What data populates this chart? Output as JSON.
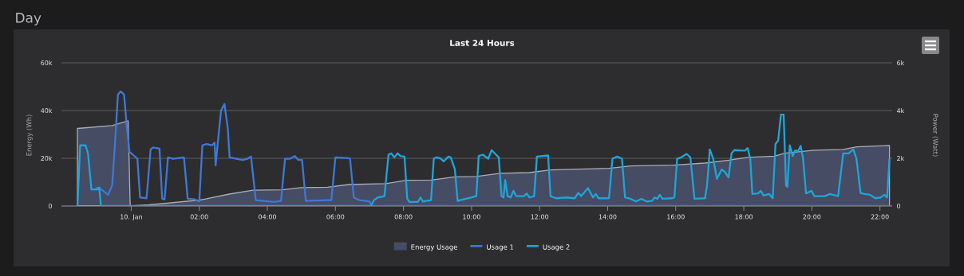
{
  "chart_data": {
    "type": "line",
    "title": "Day",
    "subtitle": "Last 24 Hours",
    "ylabel": "Energy (Wh)",
    "y2label": "Power (Watt)",
    "xlim": [
      -2.05,
      22.36
    ],
    "xticks": [
      {
        "value": 0,
        "label": "10. Jan"
      },
      {
        "value": 2,
        "label": "02:00"
      },
      {
        "value": 4,
        "label": "04:00"
      },
      {
        "value": 6,
        "label": "06:00"
      },
      {
        "value": 8,
        "label": "08:00"
      },
      {
        "value": 10,
        "label": "10:00"
      },
      {
        "value": 12,
        "label": "12:00"
      },
      {
        "value": 14,
        "label": "14:00"
      },
      {
        "value": 16,
        "label": "16:00"
      },
      {
        "value": 18,
        "label": "18:00"
      },
      {
        "value": 20,
        "label": "20:00"
      },
      {
        "value": 22,
        "label": "22:00"
      }
    ],
    "ylim": [
      0,
      60000
    ],
    "yticks": [
      0,
      {
        "value": 20000,
        "label": "20k"
      },
      {
        "value": 40000,
        "label": "40k"
      },
      {
        "value": 60000,
        "label": "60k"
      }
    ],
    "y2lim": [
      0,
      6000
    ],
    "y2ticks": [
      0,
      {
        "value": 2000,
        "label": "2k"
      },
      {
        "value": 4000,
        "label": "4k"
      },
      {
        "value": 6000,
        "label": "6k"
      }
    ],
    "grid": "y",
    "legend": "bottom",
    "series": [
      {
        "name": "Energy Usage",
        "type": "area",
        "color": "#454c64",
        "x": [
          -1.58,
          -0.56,
          -0.09,
          -0.03,
          0.53,
          2.02,
          2.88,
          3.58,
          4.44,
          5.0,
          5.77,
          6.39,
          7.48,
          8.1,
          8.81,
          9.51,
          10.14,
          10.84,
          11.7,
          12.32,
          14.04,
          14.67,
          15.92,
          16.86,
          17.56,
          18.11,
          18.9,
          19.2,
          20.07,
          20.92,
          21.32,
          22.28
        ],
        "values": [
          32500,
          33700,
          35700,
          0,
          500,
          2500,
          5000,
          6600,
          6800,
          7700,
          7900,
          9000,
          9400,
          10800,
          10900,
          12200,
          12400,
          13700,
          14000,
          15100,
          15800,
          16800,
          17100,
          18000,
          19200,
          20400,
          20900,
          22100,
          23400,
          23700,
          24800,
          25400
        ]
      },
      {
        "name": "Usage 1",
        "axis": "y2",
        "color": "#3f78d6",
        "x": [
          -1.03,
          -0.95,
          -0.68,
          -0.56,
          -0.48,
          -0.39,
          -0.31,
          -0.21,
          -0.13,
          -0.05,
          0.05,
          0.18,
          0.26,
          0.45,
          0.57,
          0.65,
          0.83,
          0.91,
          0.98,
          1.08,
          1.23,
          1.55,
          1.66,
          1.86,
          2.0,
          2.09,
          2.21,
          2.37,
          2.45,
          2.48,
          2.56,
          2.64,
          2.74,
          2.84,
          2.89,
          3.27,
          3.42,
          3.52,
          3.66,
          4.2,
          4.4,
          4.52,
          4.67,
          4.81,
          4.91,
          5.02,
          5.13,
          5.77,
          5.88,
          6.0,
          6.39,
          6.43,
          6.54,
          6.7,
          7.01,
          7.05,
          22.28
        ],
        "values": [
          750,
          773,
          470,
          862,
          2542,
          4670,
          4805,
          4670,
          3326,
          2262,
          2150,
          1982,
          358,
          325,
          2374,
          2453,
          2408,
          302,
          280,
          2038,
          1982,
          2038,
          302,
          280,
          190,
          2542,
          2598,
          2542,
          2654,
          1702,
          2878,
          3998,
          4278,
          3214,
          2038,
          1926,
          1982,
          2072,
          246,
          168,
          213,
          1982,
          1982,
          2094,
          1926,
          1926,
          213,
          246,
          246,
          2038,
          2005,
          1982,
          358,
          246,
          190,
          0,
          0
        ]
      },
      {
        "name": "Usage 2",
        "axis": "y2",
        "color": "#1fa5d8",
        "x": [
          -1.58,
          -1.5,
          -1.34,
          -1.27,
          -1.17,
          -0.99,
          -0.94,
          -0.89,
          7.05,
          7.13,
          7.25,
          7.44,
          7.56,
          7.64,
          7.73,
          7.83,
          7.91,
          8.03,
          8.11,
          8.18,
          8.42,
          8.5,
          8.57,
          8.81,
          8.89,
          8.96,
          9.08,
          9.18,
          9.32,
          9.39,
          9.51,
          9.59,
          9.67,
          10.14,
          10.21,
          10.33,
          10.49,
          10.59,
          10.72,
          10.8,
          10.88,
          10.94,
          10.99,
          11.06,
          11.15,
          11.23,
          11.31,
          11.54,
          11.62,
          11.7,
          11.84,
          11.92,
          12.25,
          12.32,
          12.48,
          12.79,
          13.03,
          13.14,
          13.22,
          13.42,
          13.57,
          13.65,
          13.73,
          14.04,
          14.14,
          14.28,
          14.42,
          14.51,
          14.67,
          14.83,
          14.99,
          15.14,
          15.3,
          15.38,
          15.46,
          15.53,
          15.61,
          15.89,
          15.96,
          16.04,
          16.16,
          16.32,
          16.43,
          16.55,
          16.86,
          16.92,
          17.0,
          17.1,
          17.21,
          17.35,
          17.45,
          17.55,
          17.64,
          17.72,
          18.03,
          18.11,
          18.19,
          18.25,
          18.42,
          18.5,
          18.58,
          18.74,
          18.85,
          18.93,
          19.01,
          19.09,
          19.17,
          19.24,
          19.28,
          19.35,
          19.44,
          19.5,
          19.6,
          19.67,
          19.74,
          19.83,
          19.99,
          20.07,
          20.38,
          20.53,
          20.77,
          20.92,
          21.08,
          21.22,
          21.31,
          21.43,
          21.55,
          21.71,
          21.86,
          22.02,
          22.13,
          22.21,
          22.28
        ],
        "values": [
          0,
          2542,
          2542,
          2200,
          694,
          694,
          773,
          0,
          0,
          246,
          358,
          414,
          2150,
          2206,
          2038,
          2206,
          2094,
          2072,
          302,
          168,
          168,
          358,
          190,
          246,
          1982,
          2038,
          2005,
          1870,
          2072,
          2038,
          1534,
          213,
          246,
          414,
          2094,
          2150,
          1982,
          2341,
          2150,
          2038,
          414,
          358,
          1086,
          414,
          358,
          638,
          414,
          414,
          526,
          358,
          414,
          2072,
          2117,
          414,
          325,
          358,
          325,
          549,
          414,
          750,
          358,
          504,
          325,
          325,
          1982,
          2072,
          1982,
          358,
          302,
          190,
          302,
          190,
          213,
          358,
          302,
          470,
          302,
          325,
          358,
          1982,
          2038,
          2184,
          2038,
          302,
          325,
          862,
          2374,
          1982,
          1142,
          1534,
          1422,
          1198,
          2206,
          2341,
          2318,
          2430,
          1982,
          504,
          526,
          638,
          437,
          504,
          325,
          2598,
          2744,
          3830,
          3830,
          862,
          806,
          2542,
          2094,
          2318,
          2318,
          2520,
          1982,
          526,
          638,
          414,
          414,
          504,
          414,
          2206,
          2206,
          2374,
          1982,
          549,
          504,
          470,
          325,
          358,
          470,
          358,
          1982
        ]
      }
    ]
  }
}
